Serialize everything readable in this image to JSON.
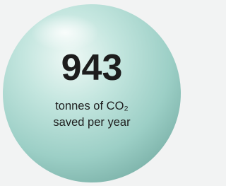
{
  "stat": {
    "value": 943,
    "lines": [
      "tonnes of CO₂",
      "saved per year"
    ]
  }
}
